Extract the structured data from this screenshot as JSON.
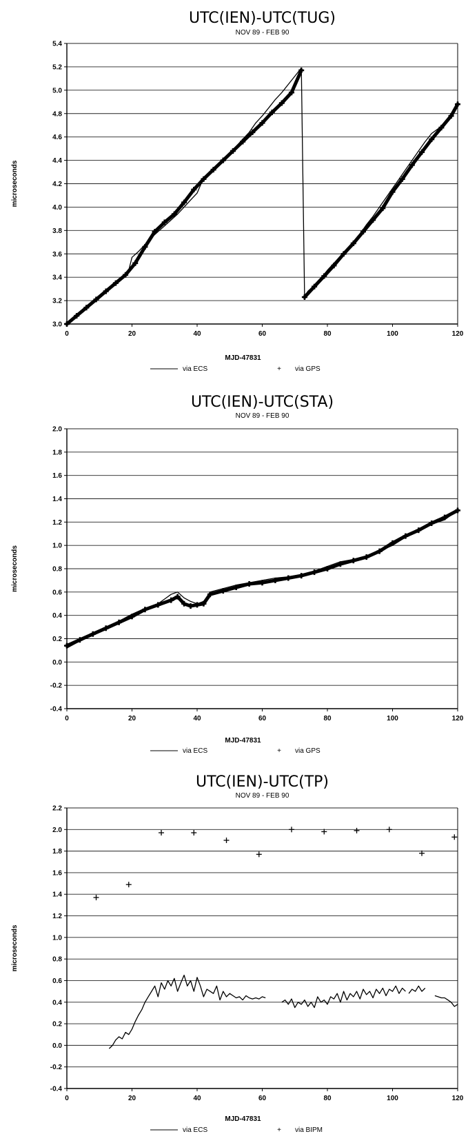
{
  "chart_data": [
    {
      "type": "line",
      "title": "UTC(IEN)-UTC(TUG)",
      "subtitle": "NOV 89 - FEB 90",
      "xlabel": "MJD-47831",
      "ylabel": "microseconds",
      "xlim": [
        0,
        120
      ],
      "ylim": [
        3.0,
        5.4
      ],
      "xticks": [
        "0",
        "20",
        "40",
        "60",
        "80",
        "100",
        "120"
      ],
      "yticks": [
        "3.0",
        "3.2",
        "3.4",
        "3.6",
        "3.8",
        "4.0",
        "4.2",
        "4.4",
        "4.6",
        "4.8",
        "5.0",
        "5.2",
        "5.4"
      ],
      "grid": true,
      "legend_position": "bottom-center",
      "series": [
        {
          "name": "via ECS",
          "style": "line",
          "x": [
            0,
            2,
            4,
            6,
            8,
            10,
            12,
            14,
            16,
            18,
            19,
            20,
            22,
            24,
            26,
            28,
            30,
            32,
            34,
            36,
            38,
            40,
            42,
            44,
            46,
            48,
            50,
            52,
            54,
            56,
            58,
            60,
            62,
            64,
            66,
            68,
            70,
            72,
            73,
            74,
            76,
            78,
            80,
            82,
            84,
            86,
            88,
            90,
            92,
            94,
            96,
            98,
            100,
            102,
            104,
            106,
            108,
            110,
            112,
            114,
            116,
            118,
            120
          ],
          "y": [
            3.0,
            3.05,
            3.1,
            3.15,
            3.2,
            3.24,
            3.29,
            3.33,
            3.38,
            3.43,
            3.46,
            3.57,
            3.62,
            3.68,
            3.74,
            3.79,
            3.84,
            3.89,
            3.94,
            4.0,
            4.06,
            4.12,
            4.25,
            4.3,
            4.35,
            4.4,
            4.46,
            4.52,
            4.58,
            4.64,
            4.72,
            4.78,
            4.85,
            4.92,
            4.98,
            5.05,
            5.12,
            5.19,
            3.23,
            3.28,
            3.33,
            3.39,
            3.46,
            3.52,
            3.58,
            3.64,
            3.7,
            3.77,
            3.85,
            3.92,
            4.0,
            4.08,
            4.16,
            4.24,
            4.32,
            4.4,
            4.48,
            4.56,
            4.63,
            4.67,
            4.72,
            4.8,
            4.88
          ]
        },
        {
          "name": "via GPS",
          "style": "marker",
          "x": [
            0,
            3,
            6,
            9,
            12,
            15,
            18,
            21,
            24,
            27,
            30,
            33,
            36,
            39,
            42,
            45,
            48,
            51,
            54,
            57,
            60,
            63,
            66,
            69,
            72,
            73,
            76,
            79,
            82,
            85,
            88,
            91,
            94,
            97,
            100,
            103,
            106,
            109,
            112,
            115,
            118,
            120
          ],
          "y": [
            3.0,
            3.07,
            3.14,
            3.21,
            3.28,
            3.35,
            3.42,
            3.52,
            3.66,
            3.79,
            3.87,
            3.94,
            4.04,
            4.15,
            4.24,
            4.32,
            4.4,
            4.48,
            4.56,
            4.64,
            4.72,
            4.81,
            4.89,
            4.98,
            5.17,
            3.23,
            3.32,
            3.41,
            3.5,
            3.6,
            3.69,
            3.79,
            3.89,
            3.99,
            4.13,
            4.24,
            4.36,
            4.47,
            4.58,
            4.68,
            4.78,
            4.88
          ]
        }
      ]
    },
    {
      "type": "line",
      "title": "UTC(IEN)-UTC(STA)",
      "subtitle": "NOV 89 - FEB 90",
      "xlabel": "MJD-47831",
      "ylabel": "microseconds",
      "xlim": [
        0,
        120
      ],
      "ylim": [
        -0.4,
        2.0
      ],
      "xticks": [
        "0",
        "20",
        "40",
        "60",
        "80",
        "100",
        "120"
      ],
      "yticks": [
        "-0.4",
        "-0.2",
        "0.0",
        "0.2",
        "0.4",
        "0.6",
        "0.8",
        "1.0",
        "1.2",
        "1.4",
        "1.6",
        "1.8",
        "2.0"
      ],
      "grid": true,
      "legend_position": "bottom-center",
      "series": [
        {
          "name": "via ECS",
          "style": "line",
          "x": [
            0,
            4,
            8,
            12,
            16,
            20,
            24,
            28,
            30,
            32,
            34,
            36,
            38,
            40,
            42,
            44,
            48,
            52,
            56,
            60,
            64,
            68,
            72,
            76,
            80,
            84,
            88,
            92,
            96,
            100,
            104,
            108,
            112,
            116,
            120
          ],
          "y": [
            0.12,
            0.18,
            0.25,
            0.3,
            0.35,
            0.41,
            0.46,
            0.5,
            0.54,
            0.58,
            0.6,
            0.55,
            0.52,
            0.5,
            0.52,
            0.6,
            0.63,
            0.66,
            0.68,
            0.7,
            0.72,
            0.73,
            0.75,
            0.78,
            0.82,
            0.86,
            0.88,
            0.9,
            0.95,
            1.0,
            1.07,
            1.12,
            1.18,
            1.22,
            1.3
          ]
        },
        {
          "name": "via GPS",
          "style": "marker",
          "x": [
            0,
            4,
            8,
            12,
            16,
            20,
            24,
            28,
            32,
            34,
            36,
            38,
            40,
            42,
            44,
            48,
            52,
            56,
            60,
            64,
            68,
            72,
            76,
            80,
            84,
            88,
            92,
            96,
            100,
            104,
            108,
            112,
            116,
            120
          ],
          "y": [
            0.14,
            0.19,
            0.24,
            0.29,
            0.34,
            0.39,
            0.45,
            0.49,
            0.53,
            0.56,
            0.5,
            0.48,
            0.49,
            0.5,
            0.58,
            0.61,
            0.64,
            0.67,
            0.68,
            0.7,
            0.72,
            0.74,
            0.77,
            0.8,
            0.84,
            0.87,
            0.9,
            0.95,
            1.02,
            1.08,
            1.13,
            1.19,
            1.24,
            1.3
          ]
        }
      ]
    },
    {
      "type": "line",
      "title": "UTC(IEN)-UTC(TP)",
      "subtitle": "NOV 89 - FEB 90",
      "xlabel": "MJD-47831",
      "ylabel": "microseconds",
      "xlim": [
        0,
        120
      ],
      "ylim": [
        -0.4,
        2.2
      ],
      "xticks": [
        "0",
        "20",
        "40",
        "60",
        "80",
        "100",
        "120"
      ],
      "yticks": [
        "-0.4",
        "-0.2",
        "0.0",
        "0.2",
        "0.4",
        "0.6",
        "0.8",
        "1.0",
        "1.2",
        "1.4",
        "1.6",
        "1.8",
        "2.0",
        "2.2"
      ],
      "grid": true,
      "legend_position": "bottom-center",
      "series": [
        {
          "name": "via ECS",
          "style": "line",
          "x": [
            13,
            14,
            15,
            16,
            17,
            18,
            19,
            20,
            21,
            22,
            23,
            24,
            25,
            26,
            27,
            28,
            29,
            30,
            31,
            32,
            33,
            34,
            35,
            36,
            37,
            38,
            39,
            40,
            41,
            42,
            43,
            44,
            45,
            46,
            47,
            48,
            49,
            50,
            51,
            52,
            53,
            54,
            55,
            56,
            57,
            58,
            59,
            60,
            61,
            null,
            66,
            67,
            68,
            69,
            70,
            71,
            72,
            73,
            74,
            75,
            76,
            77,
            78,
            79,
            80,
            81,
            82,
            83,
            84,
            85,
            86,
            87,
            88,
            89,
            90,
            91,
            92,
            93,
            94,
            95,
            96,
            97,
            98,
            99,
            100,
            101,
            102,
            103,
            104,
            null,
            105,
            106,
            107,
            108,
            109,
            110,
            null,
            113,
            114,
            115,
            116,
            117,
            118,
            119,
            120
          ],
          "y": [
            -0.03,
            0.0,
            0.05,
            0.08,
            0.06,
            0.12,
            0.1,
            0.15,
            0.22,
            0.28,
            0.33,
            0.4,
            0.45,
            0.5,
            0.55,
            0.45,
            0.58,
            0.52,
            0.6,
            0.55,
            0.62,
            0.5,
            0.58,
            0.65,
            0.55,
            0.6,
            0.5,
            0.63,
            0.55,
            0.45,
            0.52,
            0.5,
            0.48,
            0.55,
            0.42,
            0.5,
            0.45,
            0.48,
            0.46,
            0.44,
            0.45,
            0.42,
            0.46,
            0.44,
            0.43,
            0.44,
            0.43,
            0.45,
            0.44,
            null,
            0.4,
            0.42,
            0.38,
            0.43,
            0.35,
            0.4,
            0.38,
            0.42,
            0.36,
            0.4,
            0.35,
            0.45,
            0.4,
            0.42,
            0.38,
            0.45,
            0.43,
            0.48,
            0.4,
            0.5,
            0.42,
            0.48,
            0.45,
            0.5,
            0.43,
            0.52,
            0.47,
            0.5,
            0.44,
            0.52,
            0.48,
            0.53,
            0.46,
            0.52,
            0.5,
            0.55,
            0.48,
            0.53,
            0.5,
            null,
            0.48,
            0.52,
            0.5,
            0.55,
            0.5,
            0.53,
            null,
            0.46,
            0.45,
            0.44,
            0.44,
            0.42,
            0.4,
            0.36,
            0.38
          ]
        },
        {
          "name": "via BIPM",
          "style": "marker",
          "x": [
            9,
            19,
            29,
            39,
            49,
            59,
            69,
            79,
            89,
            99,
            109,
            119
          ],
          "y": [
            1.37,
            1.49,
            1.97,
            1.97,
            1.9,
            1.77,
            2.0,
            1.98,
            1.99,
            2.0,
            1.78,
            1.93
          ]
        }
      ]
    }
  ]
}
